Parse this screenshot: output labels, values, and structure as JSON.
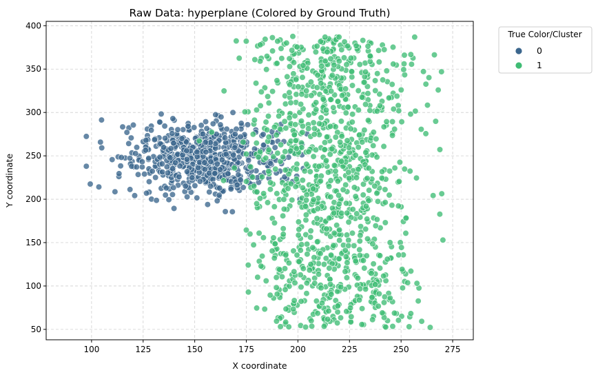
{
  "chart_data": {
    "type": "scatter",
    "title": "Raw Data: hyperplane (Colored by Ground Truth)",
    "xlabel": "X coordinate",
    "ylabel": "Y coordinate",
    "xlim": [
      78,
      285
    ],
    "ylim": [
      38,
      405
    ],
    "xticks": [
      100,
      125,
      150,
      175,
      200,
      225,
      250,
      275
    ],
    "yticks": [
      50,
      100,
      150,
      200,
      250,
      300,
      350,
      400
    ],
    "grid": true,
    "legend": {
      "title": "True Color/Cluster",
      "placement": "outside-top-right",
      "entries": [
        "0",
        "1"
      ]
    },
    "series": [
      {
        "name": "0",
        "color": "#3b668d",
        "count": 650,
        "center": [
          155,
          247
        ],
        "spread": [
          19,
          21
        ],
        "x_range": [
          89,
          205
        ],
        "y_range": [
          178,
          300
        ]
      },
      {
        "name": "1",
        "color": "#3fbc74",
        "count": 1100,
        "center": [
          215,
          230
        ],
        "spread": [
          21,
          70
        ],
        "x_range": [
          152,
          274
        ],
        "y_range": [
          52,
          388
        ]
      }
    ]
  }
}
